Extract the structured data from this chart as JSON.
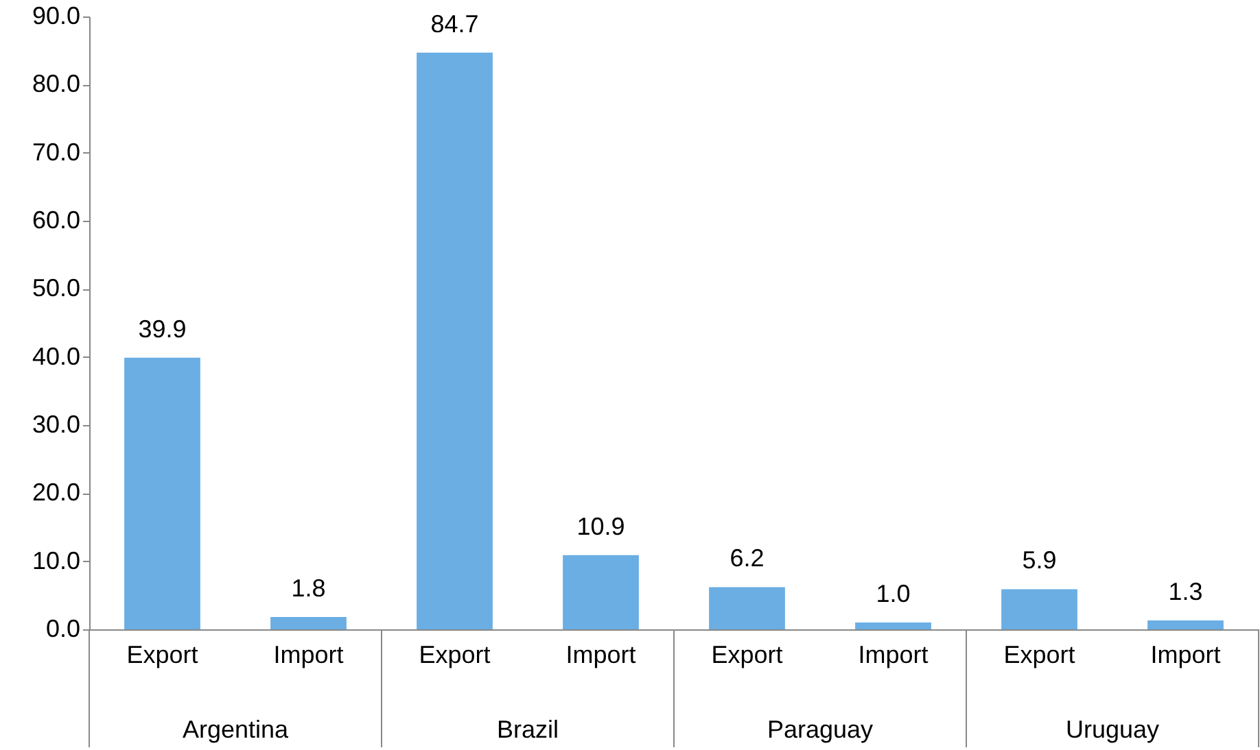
{
  "chart_data": {
    "type": "bar",
    "categories": [
      "Export",
      "Import",
      "Export",
      "Import",
      "Export",
      "Import",
      "Export",
      "Import"
    ],
    "values": [
      39.9,
      1.8,
      84.7,
      10.9,
      6.2,
      1.0,
      5.9,
      1.3
    ],
    "value_labels": [
      "39.9",
      "1.8",
      "84.7",
      "10.9",
      "6.2",
      "1.0",
      "5.9",
      "1.3"
    ],
    "color": "#6aaee4",
    "ylim": [
      0,
      90
    ],
    "yticks": [
      {
        "value": 0,
        "label": "0.0"
      },
      {
        "value": 10,
        "label": "10.0"
      },
      {
        "value": 20,
        "label": "20.0"
      },
      {
        "value": 30,
        "label": "30.0"
      },
      {
        "value": 40,
        "label": "40.0"
      },
      {
        "value": 50,
        "label": "50.0"
      },
      {
        "value": 60,
        "label": "60.0"
      },
      {
        "value": 70,
        "label": "70.0"
      },
      {
        "value": 80,
        "label": "80.0"
      },
      {
        "value": 90,
        "label": "90.0"
      }
    ],
    "annotations": [
      "Argentina",
      "Brazil",
      "Paraguay",
      "Uruguay"
    ],
    "grid": false
  }
}
